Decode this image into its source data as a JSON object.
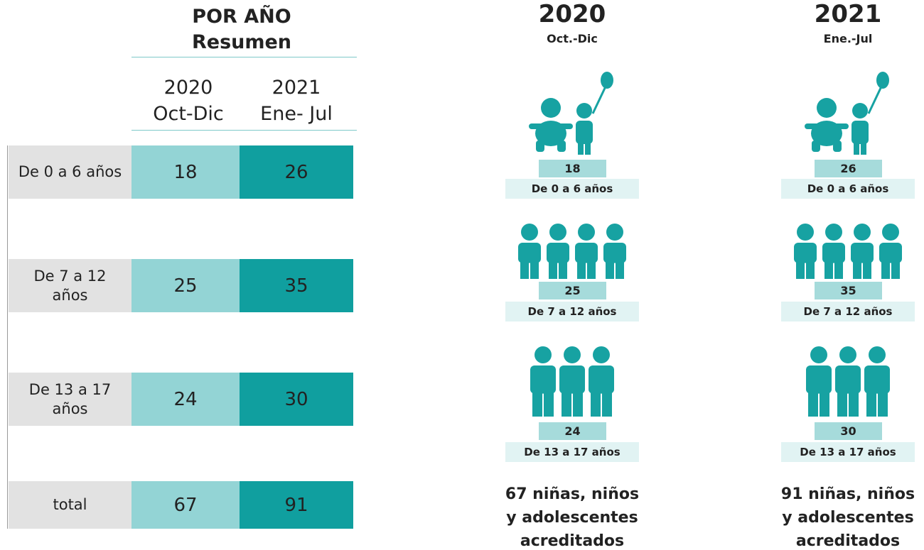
{
  "table": {
    "title": [
      "POR AÑO",
      "Resumen"
    ],
    "columns": [
      [
        "2020",
        "Oct-Dic"
      ],
      [
        "2021",
        "Ene- Jul"
      ]
    ],
    "rows": [
      [
        "De 0 a 6 años",
        "18",
        "26"
      ],
      [
        "De 7 a 12 años",
        "25",
        "35"
      ],
      [
        "De 13 a 17 años",
        "24",
        "30"
      ],
      [
        "total",
        "67",
        "91"
      ]
    ]
  },
  "panels": [
    {
      "year": "2020",
      "period": "Oct.-Dic",
      "groups": [
        {
          "value": "18",
          "label": "De 0 a 6 años"
        },
        {
          "value": "25",
          "label": "De 7 a 12 años"
        },
        {
          "value": "24",
          "label": "De 13 a 17 años"
        }
      ],
      "summary": [
        "67 niñas, niños",
        "y adolescentes",
        "acreditados"
      ]
    },
    {
      "year": "2021",
      "period": "Ene.-Jul",
      "groups": [
        {
          "value": "26",
          "label": "De 0 a 6 años"
        },
        {
          "value": "35",
          "label": "De 7 a 12 años"
        },
        {
          "value": "30",
          "label": "De 13 a 17 años"
        }
      ],
      "summary": [
        "91 niñas, niños",
        "y adolescentes",
        "acreditados"
      ]
    }
  ]
}
